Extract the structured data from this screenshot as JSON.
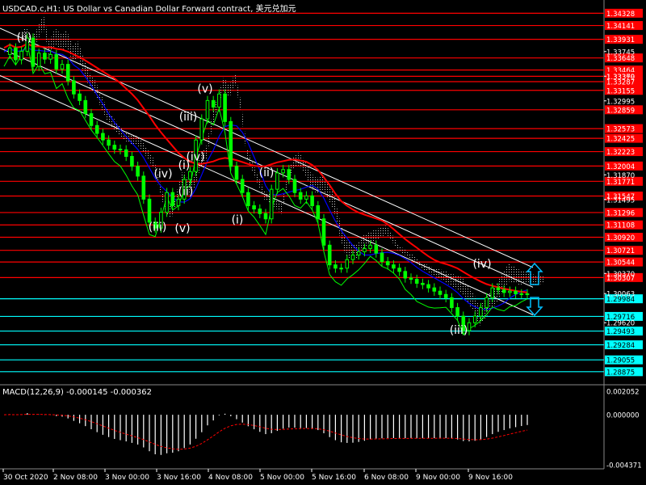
{
  "header": {
    "symbol": "USDCAD.c,H1:",
    "description": "US Dollar vs Canadian Dollar Forward contract,",
    "cn_name": "美元兑加元"
  },
  "macd": {
    "label": "MACD(12,26,9) -0.000145 -0.000362"
  },
  "colors": {
    "background": "#000000",
    "candles": "#00ff00",
    "resistance": "#ff0000",
    "support": "#00ffff",
    "channel": "#ffffff",
    "fast_ma": "#0000ff",
    "slow_ma": "#ff0000",
    "cloud": "#c8c8c8",
    "wave_label": "#ffffff",
    "signal_arrow": "#00bfff"
  },
  "chart_data": [
    {
      "type": "line",
      "name": "price",
      "ylim": [
        1.2875,
        1.3448
      ],
      "x_ticks": [
        "30 Oct 2020",
        "2 Nov 08:00",
        "3 Nov 00:00",
        "3 Nov 16:00",
        "4 Nov 08:00",
        "5 Nov 00:00",
        "5 Nov 16:00",
        "6 Nov 08:00",
        "9 Nov 00:00",
        "9 Nov 16:00"
      ],
      "plain_price_labels": [
        "1.33745",
        "1.33370",
        "1.32995",
        "1.31870",
        "1.31495",
        "1.30370",
        "1.30063",
        "1.29620"
      ],
      "resistance_levels": [
        "1.34328",
        "1.34141",
        "1.33931",
        "1.33648",
        "1.33464",
        "1.33369",
        "1.33287",
        "1.33155",
        "1.32859",
        "1.32573",
        "1.32425",
        "1.32223",
        "1.32004",
        "1.31771",
        "1.31547",
        "1.31296",
        "1.31108",
        "1.30920",
        "1.30721",
        "1.30544",
        "1.30307"
      ],
      "support_levels": [
        "1.29984",
        "1.29716",
        "1.29493",
        "1.29284",
        "1.29055",
        "1.28875"
      ],
      "wave_labels": [
        {
          "text": "(ii)",
          "price": 1.339
        },
        {
          "text": "(iii)",
          "price": 1.327
        },
        {
          "text": "(v)",
          "price": 1.3312
        },
        {
          "text": "(iv)",
          "price": 1.3183
        },
        {
          "text": "(i)",
          "price": 1.3196
        },
        {
          "text": "(iv)",
          "price": 1.3209
        },
        {
          "text": "(ii)",
          "price": 1.3185
        },
        {
          "text": "(ii)",
          "price": 1.3156
        },
        {
          "text": "(iii)",
          "price": 1.3102
        },
        {
          "text": "(v)",
          "price": 1.31
        },
        {
          "text": "(i)",
          "price": 1.3113
        },
        {
          "text": "(iv)",
          "price": 1.3046
        },
        {
          "text": "(iii)",
          "price": 1.2945
        }
      ],
      "close_series": [
        1.337,
        1.338,
        1.3362,
        1.3375,
        1.3395,
        1.3352,
        1.3372,
        1.3363,
        1.337,
        1.3348,
        1.3355,
        1.333,
        1.331,
        1.33,
        1.328,
        1.3262,
        1.325,
        1.324,
        1.3232,
        1.3226,
        1.3225,
        1.3215,
        1.32,
        1.3185,
        1.315,
        1.3115,
        1.3106,
        1.313,
        1.316,
        1.314,
        1.315,
        1.318,
        1.3192,
        1.324,
        1.3272,
        1.33,
        1.329,
        1.331,
        1.3268,
        1.32,
        1.318,
        1.316,
        1.314,
        1.3135,
        1.3128,
        1.312,
        1.3165,
        1.319,
        1.3195,
        1.318,
        1.316,
        1.315,
        1.3155,
        1.314,
        1.312,
        1.308,
        1.305,
        1.3045,
        1.3045,
        1.3058,
        1.3065,
        1.307,
        1.3075,
        1.308,
        1.3068,
        1.3055,
        1.305,
        1.3045,
        1.304,
        1.303,
        1.3028,
        1.3022,
        1.302,
        1.3015,
        1.301,
        1.3005,
        1.3,
        1.2985,
        1.2972,
        1.295,
        1.2962,
        1.2972,
        1.2985,
        1.3,
        1.3015,
        1.3012,
        1.3008,
        1.301,
        1.3006,
        1.3006,
        1.3006
      ]
    },
    {
      "type": "bar",
      "name": "MACD(12,26,9)",
      "ylim": [
        -0.004371,
        0.002052
      ],
      "tick_labels": [
        "0.002052",
        "0.000000",
        "-0.004371"
      ]
    }
  ]
}
